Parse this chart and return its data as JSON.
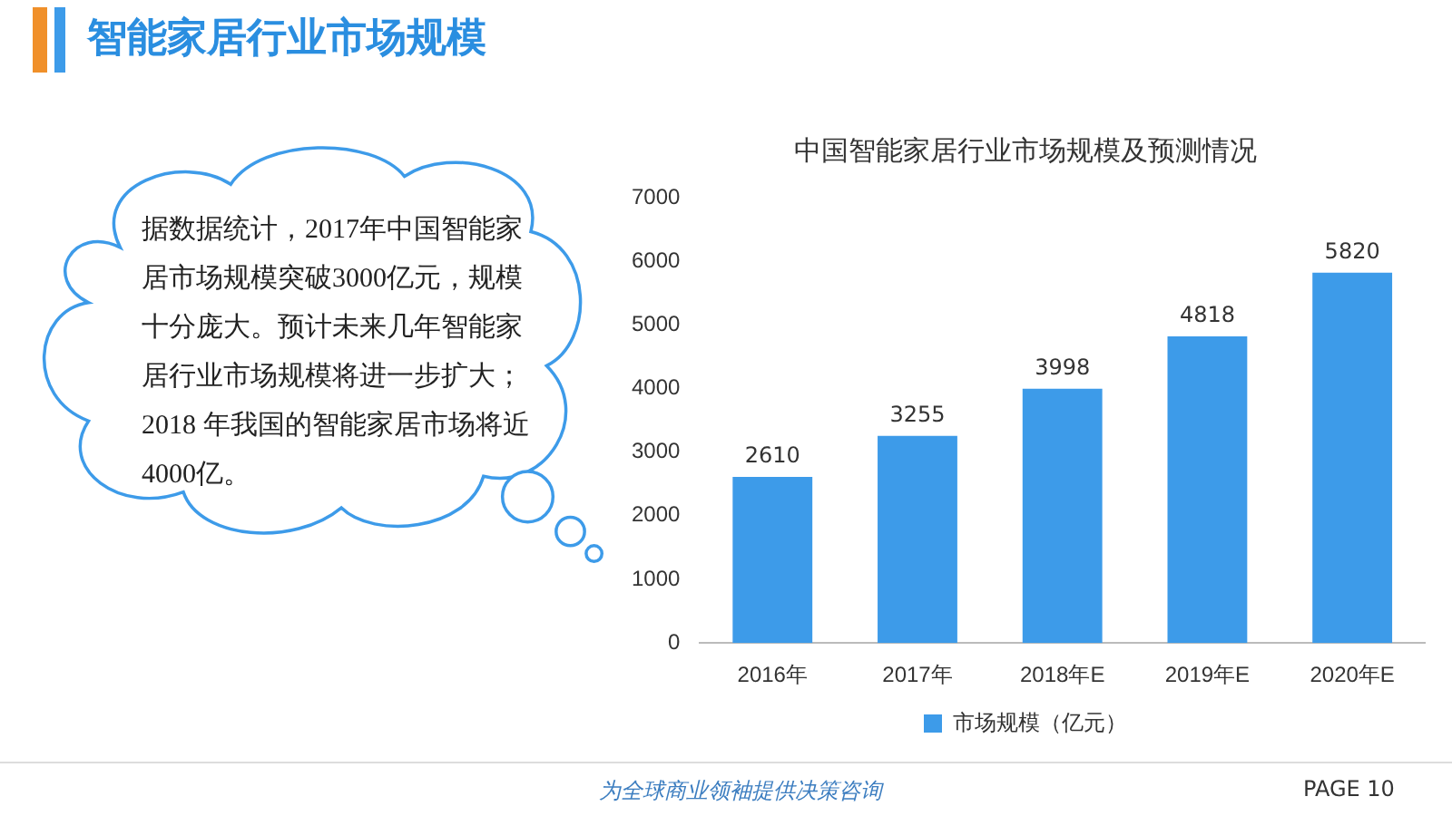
{
  "chart_data": {
    "type": "bar",
    "title": "中国智能家居行业市场规模及预测情况",
    "categories": [
      "2016年",
      "2017年",
      "2018年E",
      "2019年E",
      "2020年E"
    ],
    "series": [
      {
        "name": "市场规模（亿元）",
        "color": "#3d9be9",
        "values": [
          2610,
          3255,
          3998,
          4818,
          5820
        ]
      }
    ],
    "ylim": [
      0,
      7000
    ],
    "yticks": [
      0,
      1000,
      2000,
      3000,
      4000,
      5000,
      6000,
      7000
    ],
    "grid": false,
    "legend": "bottom",
    "data_labels": true,
    "annotations": [
      "智能家居行业市场规模",
      "据数据统计，2017年中国智能家居市场规模突破3000亿元，规模十分庞大。预计未来几年智能家居行业市场规模将进一步扩大；2018 年我国的智能家居市场将近4000亿。",
      "为全球商业领袖提供决策咨询",
      "PAGE 10"
    ]
  }
}
